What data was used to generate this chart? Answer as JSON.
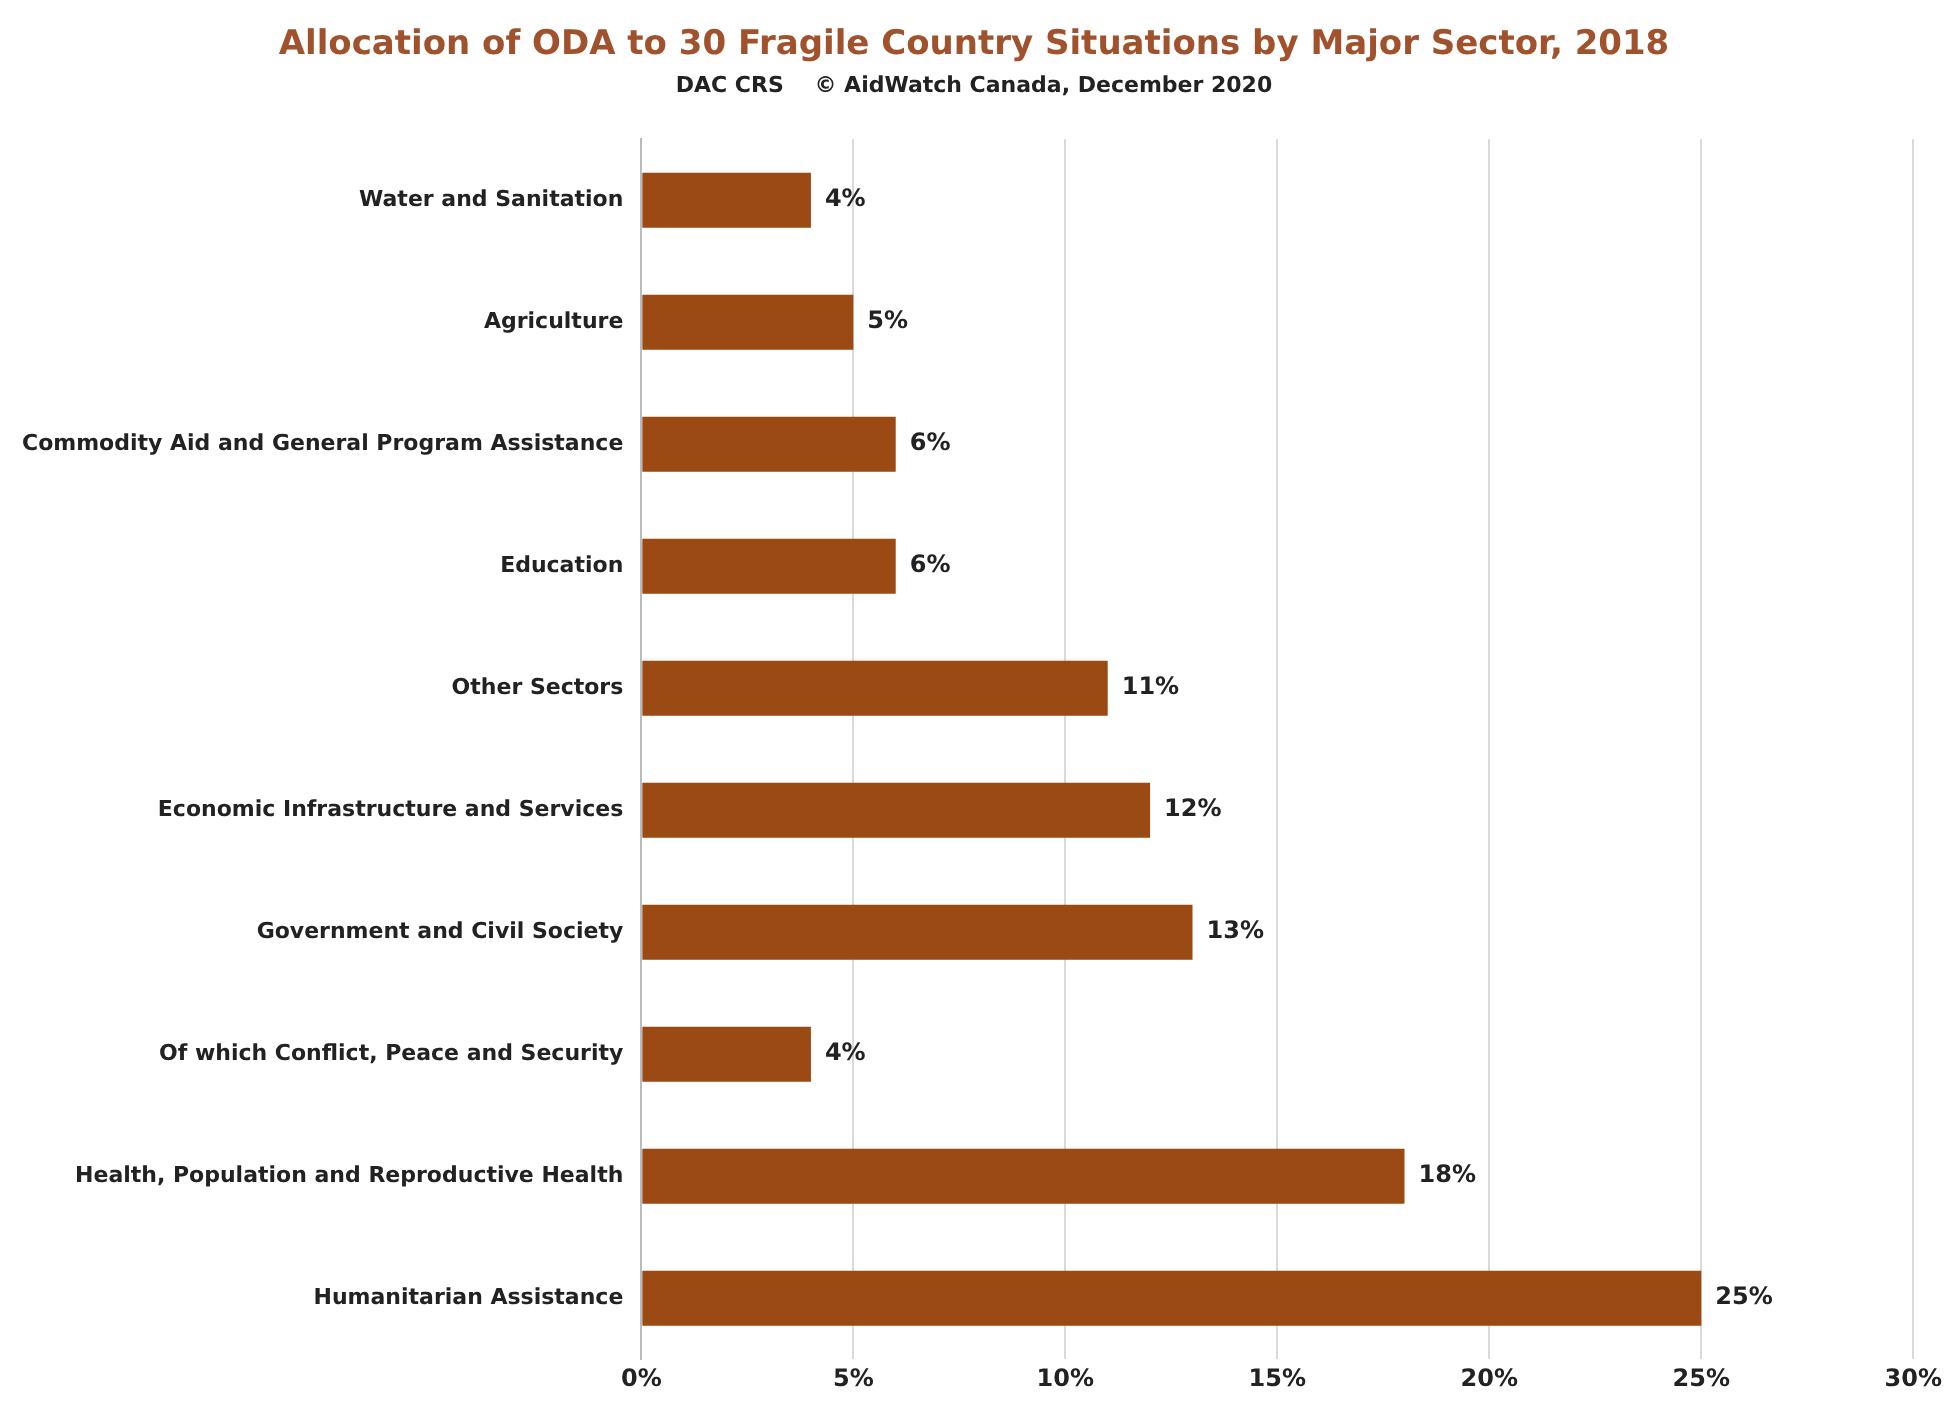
{
  "chart_data": {
    "type": "bar",
    "orientation": "horizontal",
    "title": "Allocation of ODA to 30 Fragile Country Situations  by Major Sector, 2018",
    "subtitle": "DAC CRS    © AidWatch Canada, December 2020",
    "categories": [
      "Water and Sanitation",
      "Agriculture",
      "Commodity Aid and General Program Assistance",
      "Education",
      "Other Sectors",
      "Economic Infrastructure and Services",
      "Government and Civil Society",
      "Of which Conflict, Peace and Security",
      "Health, Population and Reproductive Health",
      "Humanitarian Assistance"
    ],
    "values": [
      4,
      5,
      6,
      6,
      11,
      12,
      13,
      4,
      18,
      25
    ],
    "value_labels": [
      "4%",
      "5%",
      "6%",
      "6%",
      "11%",
      "12%",
      "13%",
      "4%",
      "18%",
      "25%"
    ],
    "color": "#9a4a12",
    "xlim": [
      0,
      30
    ],
    "xticks": [
      {
        "value": 0,
        "label": "0%"
      },
      {
        "value": 5,
        "label": "5%"
      },
      {
        "value": 10,
        "label": "10%"
      },
      {
        "value": 15,
        "label": "15%"
      },
      {
        "value": 20,
        "label": "20%"
      },
      {
        "value": 25,
        "label": "25%"
      },
      {
        "value": 30,
        "label": "30%"
      }
    ],
    "grid": "x"
  }
}
